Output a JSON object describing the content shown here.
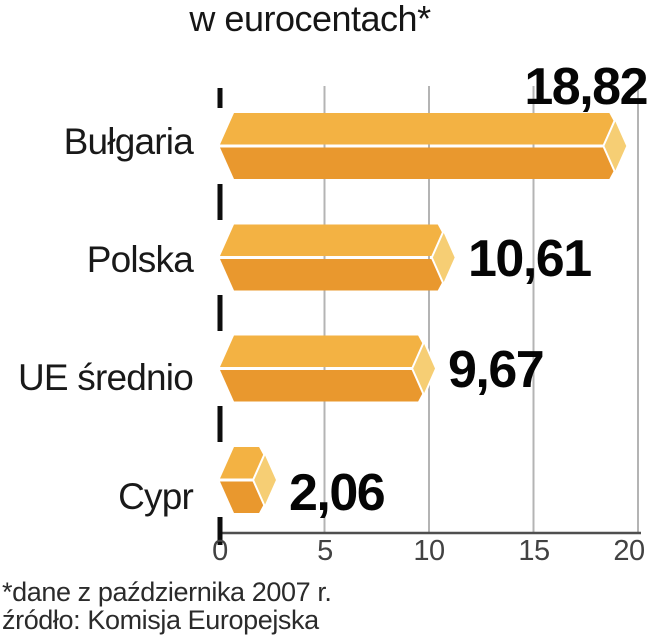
{
  "title": "w eurocentach*",
  "footnotes": {
    "line1": "*dane z października 2007 r.",
    "line2": "źródło: Komisja Europejska"
  },
  "chart_data": {
    "type": "bar",
    "orientation": "horizontal",
    "style": "3d-extruded-bars",
    "title": "w eurocentach*",
    "xlabel": "",
    "ylabel": "",
    "categories": [
      "Bułgaria",
      "Polska",
      "UE średnio",
      "Cypr"
    ],
    "values": [
      18.82,
      10.61,
      9.67,
      2.06
    ],
    "value_labels": [
      "18,82",
      "10,61",
      "9,67",
      "2,06"
    ],
    "xlim": [
      0,
      20
    ],
    "x_ticks": [
      0,
      5,
      10,
      15,
      20
    ],
    "x_tick_labels": [
      "0",
      "5",
      "10",
      "15",
      "20"
    ],
    "grid": true,
    "legend": false,
    "axis_style": "dashed-zero-line",
    "colors": {
      "bar_top": "#F3B243",
      "bar_bottom": "#E9982E",
      "bar_cap": "#F6CE74",
      "bar_separator": "#FFFFFF",
      "gridline": "#B4B4B4",
      "axis_dash": "#0D0D0D",
      "baseline": "#4F4F4F",
      "tick_text": "#424242",
      "category_text": "#191919",
      "value_text": "#050505",
      "footnote_text": "#2B2B2B",
      "background": "#FFFFFF"
    }
  }
}
